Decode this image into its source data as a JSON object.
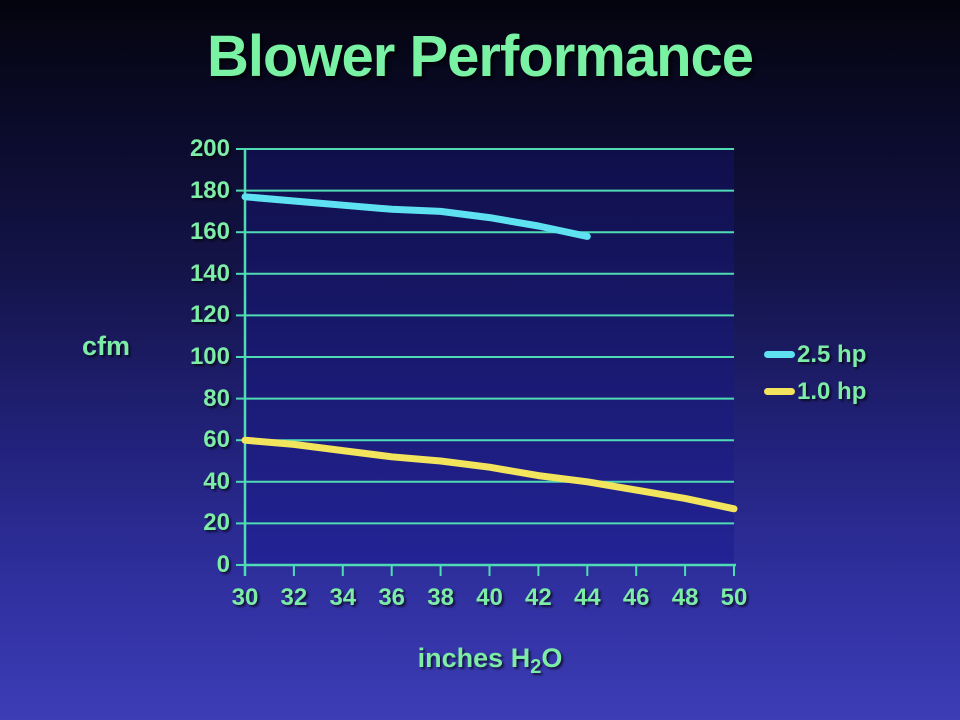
{
  "slide": {
    "title": "Blower Performance"
  },
  "chart_data": {
    "type": "line",
    "title": "Blower Performance",
    "xlabel": "inches H2O",
    "ylabel": "cfm",
    "xlim": [
      30,
      50
    ],
    "ylim": [
      0,
      200
    ],
    "x_ticks": [
      30,
      32,
      34,
      36,
      38,
      40,
      42,
      44,
      46,
      48,
      50
    ],
    "y_ticks": [
      0,
      20,
      40,
      60,
      80,
      100,
      120,
      140,
      160,
      180,
      200
    ],
    "grid": true,
    "legend_position": "right",
    "series": [
      {
        "name": "2.5 hp",
        "color": "#5ee2f2",
        "x": [
          30,
          32,
          34,
          36,
          38,
          40,
          42,
          44
        ],
        "values": [
          177,
          175,
          173,
          171,
          170,
          167,
          163,
          158
        ]
      },
      {
        "name": "1.0 hp",
        "color": "#f2e45c",
        "x": [
          30,
          32,
          34,
          36,
          38,
          40,
          42,
          44,
          46,
          48,
          50
        ],
        "values": [
          60,
          58,
          55,
          52,
          50,
          47,
          43,
          40,
          36,
          32,
          27
        ]
      }
    ]
  },
  "axis_labels": {
    "y_title": "cfm",
    "x_title_main": "inches H",
    "x_title_sub": "2",
    "x_title_end": "O"
  },
  "legend": {
    "items": [
      {
        "label": "2.5 hp",
        "color": "#5ee2f2"
      },
      {
        "label": "1.0 hp",
        "color": "#f2e45c"
      }
    ]
  },
  "style": {
    "title_color": "#7af2a3",
    "text_color": "#7deca6",
    "grid_color": "#4fdcb4",
    "axis_color": "#4fdcb4",
    "plot_fill_top": "#0f0f4a",
    "plot_fill_bottom": "#232396",
    "background_top": "#04040e",
    "background_bottom": "#3d3db6"
  }
}
